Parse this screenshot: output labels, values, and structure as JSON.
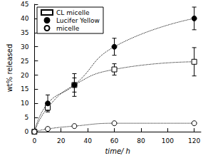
{
  "chart_data": {
    "type": "scatter",
    "x_label": "time/ h",
    "y_label": "wt% released",
    "x": [
      0,
      10,
      30,
      60,
      120
    ],
    "series": [
      {
        "name": "CL micelle",
        "color": "#000000",
        "marker": "square-open",
        "line_style": "dotted",
        "values": [
          0,
          8.5,
          16.5,
          22,
          24.7
        ],
        "errors": [
          null,
          1,
          2.5,
          2,
          5
        ]
      },
      {
        "name": "Lucifer Yellow",
        "color": "#000000",
        "marker": "circle",
        "line_style": "dotted",
        "values": [
          0,
          10,
          16.5,
          30,
          40
        ],
        "errors": [
          null,
          3,
          4,
          3,
          4
        ]
      },
      {
        "name": "micelle",
        "color": "#000000",
        "marker": "circle-open",
        "line_style": "dotted",
        "values": [
          0,
          1,
          2,
          3,
          3
        ],
        "errors": [
          null,
          0.3,
          0.3,
          0.3,
          0.3
        ]
      }
    ],
    "xlim": [
      0,
      125
    ],
    "xticks": [
      0,
      20,
      40,
      60,
      80,
      100,
      120
    ],
    "ylim": [
      0,
      45
    ],
    "yticks": [
      0,
      5,
      10,
      15,
      20,
      25,
      30,
      35,
      40,
      45
    ],
    "legend": "top-left",
    "grid": false
  }
}
